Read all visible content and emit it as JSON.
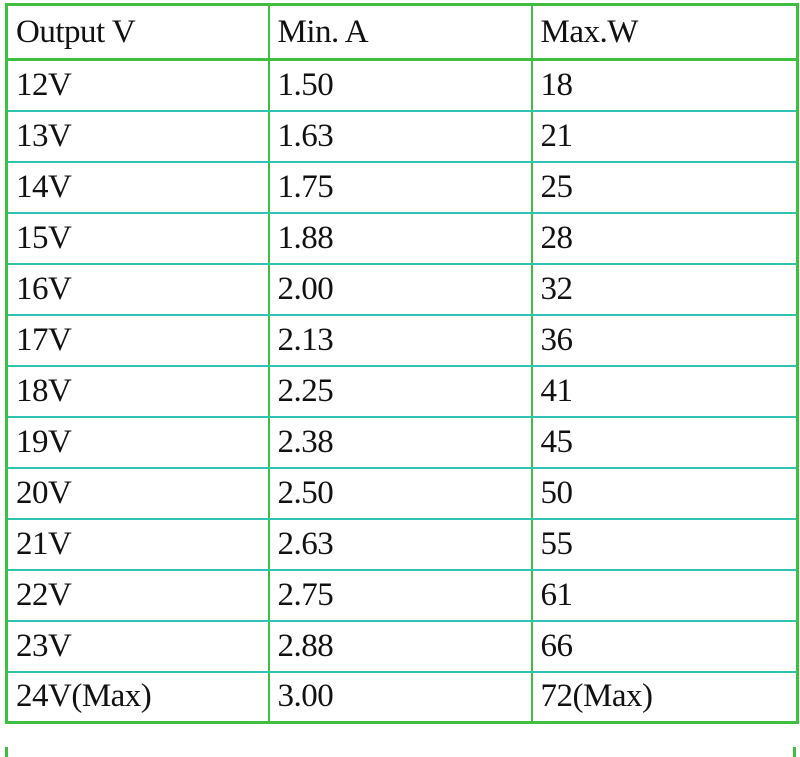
{
  "table": {
    "headers": [
      "Output V",
      "Min. A",
      "Max.W"
    ],
    "rows": [
      [
        "12V",
        "1.50",
        "18"
      ],
      [
        "13V",
        "1.63",
        "21"
      ],
      [
        "14V",
        "1.75",
        "25"
      ],
      [
        "15V",
        "1.88",
        "28"
      ],
      [
        "16V",
        "2.00",
        "32"
      ],
      [
        "17V",
        "2.13",
        "36"
      ],
      [
        "18V",
        "2.25",
        "41"
      ],
      [
        "19V",
        "2.38",
        "45"
      ],
      [
        "20V",
        "2.50",
        "50"
      ],
      [
        "21V",
        "2.63",
        "55"
      ],
      [
        "22V",
        "2.75",
        "61"
      ],
      [
        "23V",
        "2.88",
        "66"
      ],
      [
        "24V(Max)",
        "3.00",
        "72(Max)"
      ]
    ]
  },
  "colors": {
    "outer_border": "#3fbf3f",
    "row_divider": "#2fc3b3",
    "text": "#111111",
    "background": "#ffffff"
  }
}
